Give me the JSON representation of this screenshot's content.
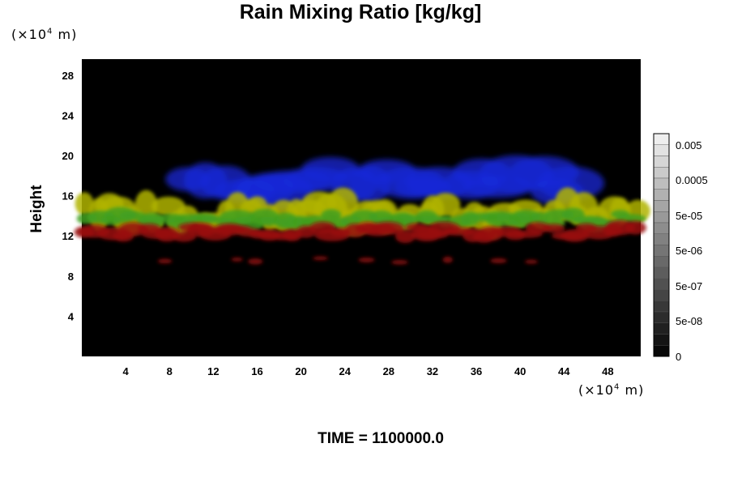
{
  "chart_data": {
    "type": "heatmap",
    "title": "Rain Mixing Ratio [kg/kg]",
    "ylabel": "Height",
    "x_unit": {
      "prefix": "(×10",
      "exp": "4",
      "suffix": " m)"
    },
    "y_unit": {
      "prefix": "(×10",
      "exp": "4",
      "suffix": " m)"
    },
    "x_ticks": [
      4,
      8,
      12,
      16,
      20,
      24,
      28,
      32,
      36,
      40,
      44,
      48
    ],
    "y_ticks": [
      4,
      8,
      12,
      16,
      20,
      24,
      28
    ],
    "xlim": [
      0,
      51
    ],
    "ylim": [
      0,
      29.6
    ],
    "colorbar_labels": [
      "0.005",
      "0.0005",
      "5e-05",
      "5e-06",
      "5e-07",
      "5e-08",
      "0"
    ],
    "background_color": "#000000",
    "layers": [
      {
        "color": "#1a2ad8",
        "y_range": [
          15.5,
          19.5
        ],
        "x_range": [
          9,
          46
        ]
      },
      {
        "color": "#b0b400",
        "y_range": [
          12.5,
          16.0
        ],
        "x_range": [
          0,
          51
        ]
      },
      {
        "color": "#3fa020",
        "y_range": [
          12.8,
          14.5
        ],
        "x_range": [
          0,
          51
        ]
      },
      {
        "color": "#9a0c0c",
        "y_range": [
          11.6,
          13.2
        ],
        "x_range": [
          0,
          51
        ]
      },
      {
        "color": "#8a0c0c",
        "y_range": [
          9.0,
          10.2
        ],
        "x_range": [
          7.5,
          43
        ]
      }
    ]
  },
  "footer": {
    "time": "TIME = 1100000.0"
  }
}
